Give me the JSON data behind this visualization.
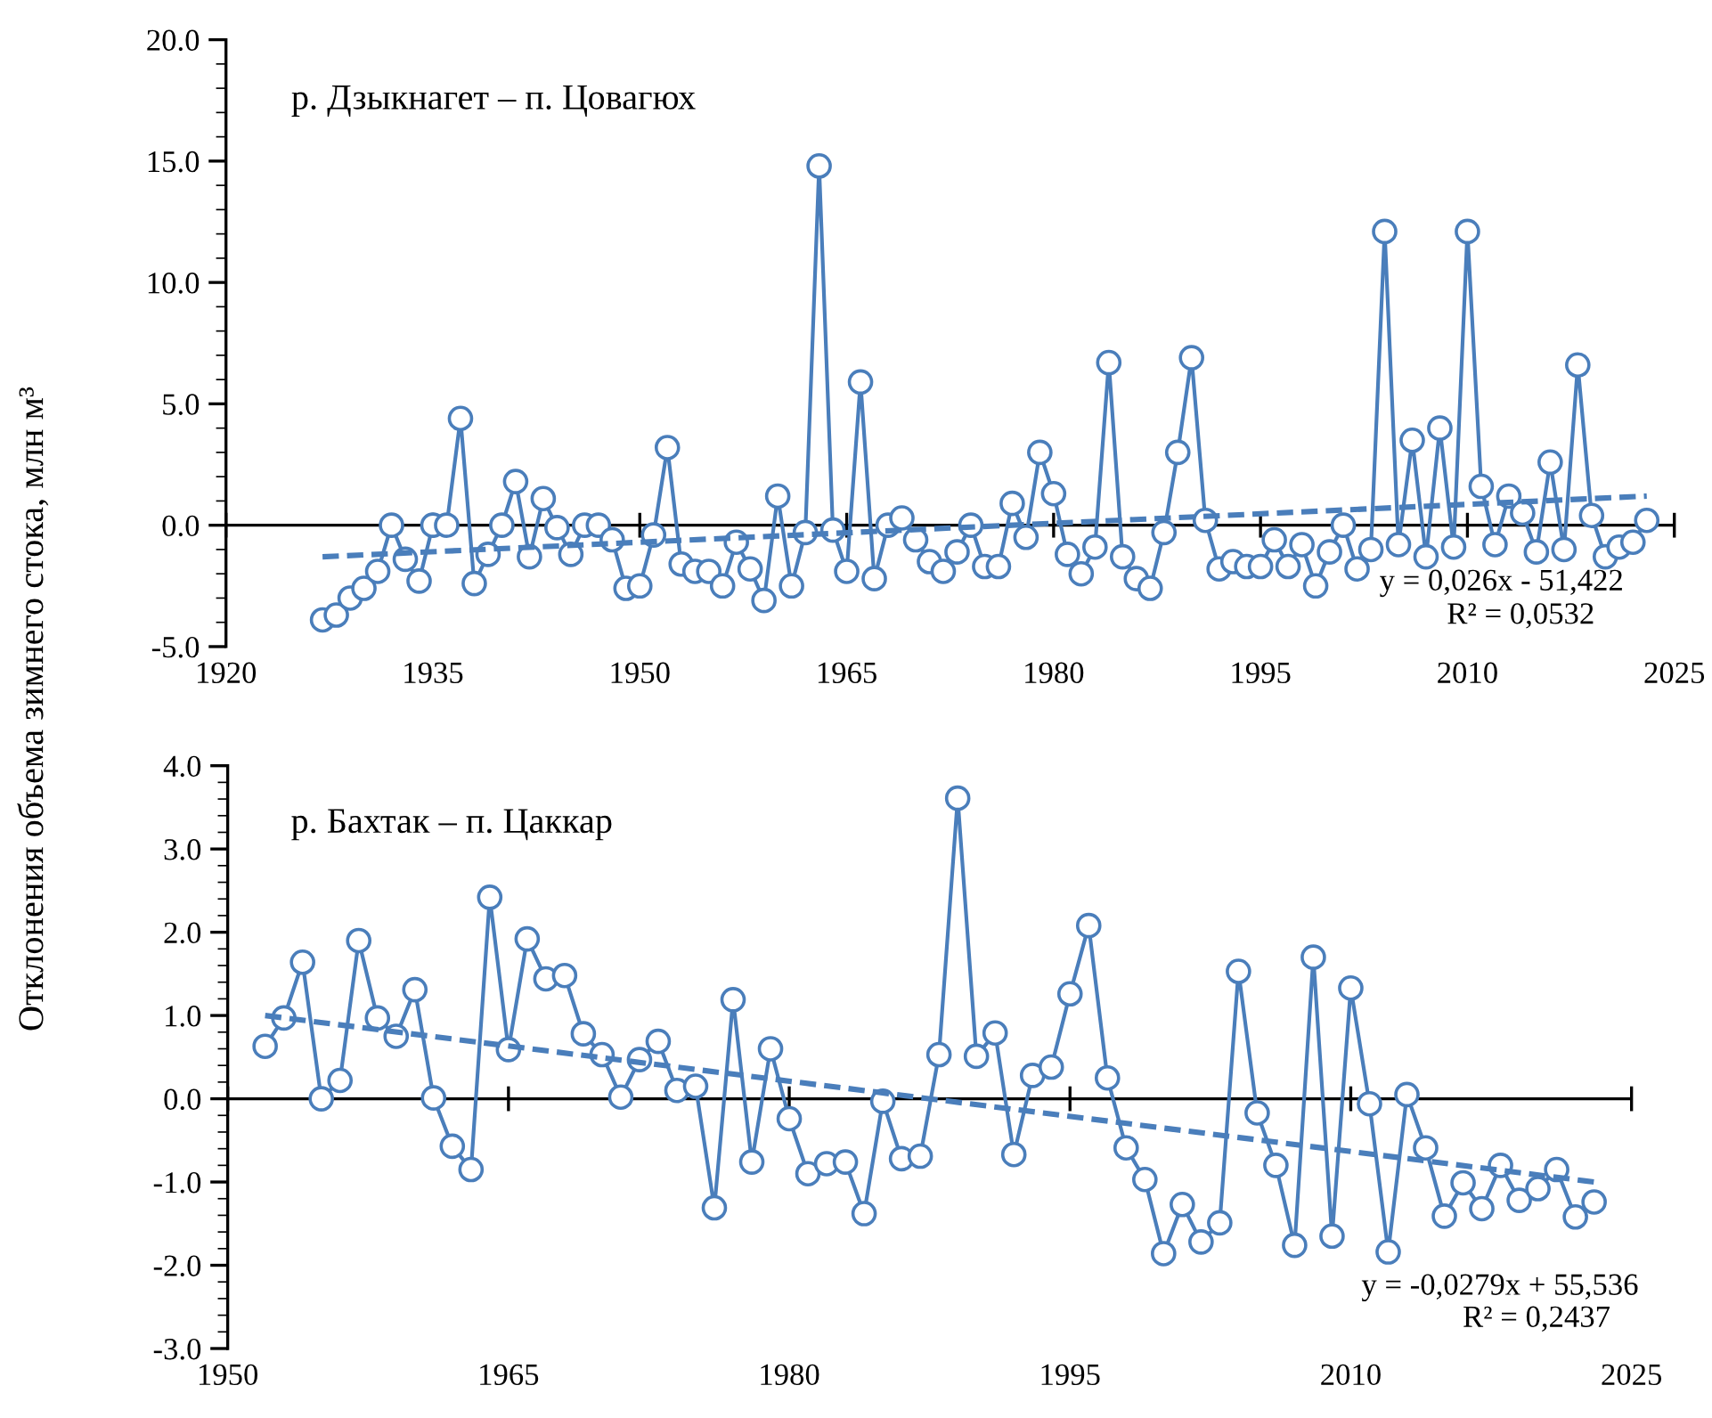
{
  "chart_data": [
    {
      "type": "line",
      "title": "р. Дзыкнагет – п. Цовагюх",
      "ylabel": "Отклонения объема зимнего стока, млн м³",
      "annotations": [
        "y = 0,026x - 51,422",
        "R² = 0,0532"
      ],
      "xlim": [
        1920,
        2025
      ],
      "xticks": [
        1920,
        1935,
        1950,
        1965,
        1980,
        1995,
        2010,
        2025
      ],
      "ref_lines": [
        {
          "axis": "y",
          "value": 0,
          "color": "#000000"
        }
      ],
      "ylim": [
        -5,
        20
      ],
      "yticks": [
        {
          "value": -5,
          "label": "-5.0"
        },
        {
          "value": 0,
          "label": "0.0"
        },
        {
          "value": 5,
          "label": "5.0"
        },
        {
          "value": 10,
          "label": "10.0"
        },
        {
          "value": 15,
          "label": "15.0"
        },
        {
          "value": 20,
          "label": "20.0"
        }
      ],
      "grid": false,
      "legend": false,
      "series": [
        {
          "color": "#4a7ebb",
          "marker": "circle",
          "line_style": "solid",
          "x": [
            1927,
            1928,
            1929,
            1930,
            1931,
            1932,
            1933,
            1934,
            1935,
            1936,
            1937,
            1938,
            1939,
            1940,
            1941,
            1942,
            1943,
            1944,
            1945,
            1946,
            1947,
            1948,
            1949,
            1950,
            1951,
            1952,
            1953,
            1954,
            1955,
            1956,
            1957,
            1958,
            1959,
            1960,
            1961,
            1962,
            1963,
            1964,
            1965,
            1966,
            1967,
            1968,
            1969,
            1970,
            1971,
            1972,
            1973,
            1974,
            1975,
            1976,
            1977,
            1978,
            1979,
            1980,
            1981,
            1982,
            1983,
            1984,
            1985,
            1986,
            1987,
            1988,
            1989,
            1990,
            1991,
            1992,
            1993,
            1994,
            1995,
            1996,
            1997,
            1998,
            1999,
            2000,
            2001,
            2002,
            2003,
            2004,
            2005,
            2006,
            2007,
            2008,
            2009,
            2010,
            2011,
            2012,
            2013,
            2014,
            2015,
            2016,
            2017,
            2018,
            2019,
            2020,
            2021,
            2022,
            2023
          ],
          "values": [
            -3.9,
            -3.7,
            -3.0,
            -2.6,
            -1.9,
            0.0,
            -1.4,
            -2.3,
            0.0,
            0.0,
            4.4,
            -2.4,
            -1.2,
            0.0,
            1.8,
            -1.3,
            1.1,
            -0.1,
            -1.2,
            0.0,
            0.0,
            -0.6,
            -2.6,
            -2.5,
            -0.4,
            3.2,
            -1.6,
            -1.9,
            -1.9,
            -2.5,
            -0.7,
            -1.8,
            -3.1,
            1.2,
            -2.5,
            -0.3,
            14.8,
            -0.2,
            -1.9,
            5.9,
            -2.2,
            0.0,
            0.3,
            -0.6,
            -1.5,
            -1.9,
            -1.1,
            0.0,
            -1.7,
            -1.7,
            0.9,
            -0.5,
            3.0,
            1.3,
            -1.2,
            -2.0,
            -0.9,
            6.7,
            -1.3,
            -2.2,
            -2.6,
            -0.3,
            3.0,
            6.9,
            0.2,
            -1.8,
            -1.5,
            -1.7,
            -1.7,
            -0.6,
            -1.7,
            -0.8,
            -2.5,
            -1.1,
            0.0,
            -1.8,
            -1.0,
            12.1,
            -0.8,
            3.5,
            -1.3,
            4.0,
            -0.9,
            12.1,
            1.6,
            -0.8,
            1.2,
            0.5,
            -1.1,
            2.6,
            -1.0,
            6.6,
            0.4,
            -1.3,
            -0.9,
            -0.7,
            0.2
          ]
        },
        {
          "type": "line",
          "color": "#4a7ebb",
          "marker": "none",
          "line_style": "dashed",
          "x": [
            1927,
            2023
          ],
          "values": [
            -1.3,
            1.2
          ]
        }
      ]
    },
    {
      "type": "line",
      "title": "р. Бахтак – п. Цаккар",
      "annotations": [
        "y = -0,0279x + 55,536",
        "R² = 0,2437"
      ],
      "xlim": [
        1950,
        2025
      ],
      "xticks": [
        1950,
        1965,
        1980,
        1995,
        2010,
        2025
      ],
      "ref_lines": [
        {
          "axis": "y",
          "value": 0,
          "color": "#000000"
        }
      ],
      "ylim": [
        -3,
        4
      ],
      "yticks": [
        {
          "value": -3,
          "label": "-3.0"
        },
        {
          "value": -2,
          "label": "-2.0"
        },
        {
          "value": -1,
          "label": "-1.0"
        },
        {
          "value": 0,
          "label": "0.0"
        },
        {
          "value": 1,
          "label": "1.0"
        },
        {
          "value": 2,
          "label": "2.0"
        },
        {
          "value": 3,
          "label": "3.0"
        },
        {
          "value": 4,
          "label": "4.0"
        }
      ],
      "grid": false,
      "legend": false,
      "series": [
        {
          "color": "#4a7ebb",
          "marker": "circle",
          "line_style": "solid",
          "x": [
            1952,
            1953,
            1954,
            1955,
            1956,
            1957,
            1958,
            1959,
            1960,
            1961,
            1962,
            1963,
            1964,
            1965,
            1966,
            1967,
            1968,
            1969,
            1970,
            1971,
            1972,
            1973,
            1974,
            1975,
            1976,
            1977,
            1978,
            1979,
            1980,
            1981,
            1982,
            1983,
            1984,
            1985,
            1986,
            1987,
            1988,
            1989,
            1990,
            1991,
            1992,
            1993,
            1994,
            1995,
            1996,
            1997,
            1998,
            1999,
            2000,
            2001,
            2002,
            2003,
            2004,
            2005,
            2006,
            2007,
            2008,
            2009,
            2010,
            2011,
            2012,
            2013,
            2014,
            2015,
            2016,
            2017,
            2018,
            2019,
            2020,
            2021,
            2022,
            2023
          ],
          "values": [
            0.63,
            0.97,
            1.64,
            0.0,
            0.22,
            1.9,
            0.97,
            0.75,
            1.31,
            0.01,
            -0.57,
            -0.85,
            2.42,
            0.59,
            1.92,
            1.44,
            1.48,
            0.78,
            0.53,
            0.02,
            0.47,
            0.69,
            0.1,
            0.15,
            -1.31,
            1.19,
            -0.76,
            0.6,
            -0.24,
            -0.9,
            -0.78,
            -0.76,
            -1.38,
            -0.03,
            -0.72,
            -0.69,
            0.53,
            3.61,
            0.51,
            0.79,
            -0.67,
            0.28,
            0.38,
            1.26,
            2.08,
            0.25,
            -0.59,
            -0.97,
            -1.86,
            -1.27,
            -1.72,
            -1.49,
            1.53,
            -0.17,
            -0.8,
            -1.76,
            1.7,
            -1.65,
            1.33,
            -0.06,
            -1.84,
            0.05,
            -0.59,
            -1.41,
            -1.01,
            -1.32,
            -0.8,
            -1.22,
            -1.08,
            -0.85,
            -1.42,
            -1.24
          ]
        },
        {
          "type": "line",
          "color": "#4a7ebb",
          "marker": "none",
          "line_style": "dashed",
          "x": [
            1952,
            2023
          ],
          "values": [
            1.0,
            -1.0
          ]
        }
      ]
    }
  ]
}
